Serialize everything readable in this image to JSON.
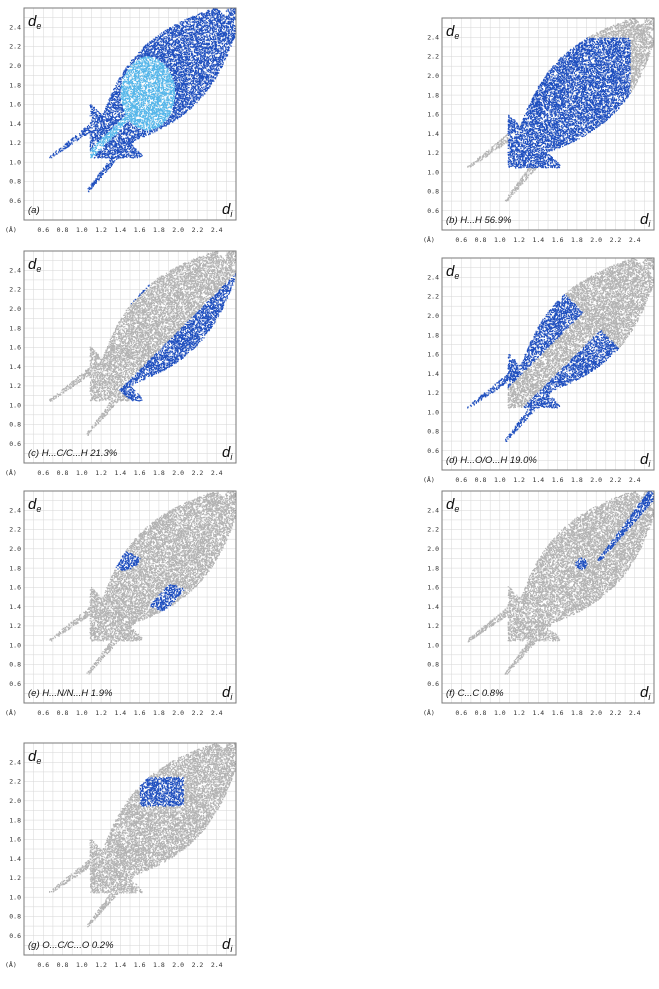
{
  "labels": {
    "de_main": "d",
    "de_sub": "e",
    "di_main": "d",
    "di_sub": "i",
    "unit": "(Å)"
  },
  "colors": {
    "background_points": "#b3b3b3",
    "highlight_points": "#1f4fbf",
    "hot_points": "#55b6ea",
    "grid": "#d6d6d6",
    "frame": "#7a7a7a"
  },
  "chart_data": [
    {
      "id": "a",
      "type": "scatter",
      "caption": "(a)",
      "highlight": "full",
      "x_ticks": [
        "0.6",
        "0.8",
        "1.0",
        "1.2",
        "1.4",
        "1.6",
        "1.8",
        "2.0",
        "2.2",
        "2.4"
      ],
      "y_ticks": [
        "0.6",
        "0.8",
        "1.0",
        "1.2",
        "1.4",
        "1.6",
        "1.8",
        "2.0",
        "2.2",
        "2.4"
      ],
      "xlim": [
        0.4,
        2.6
      ],
      "ylim": [
        0.4,
        2.6
      ],
      "grid": true
    },
    {
      "id": "b",
      "type": "scatter",
      "caption": "(b) H...H 56.9%",
      "highlight": "HH",
      "x_ticks": [
        "0.6",
        "0.8",
        "1.0",
        "1.2",
        "1.4",
        "1.6",
        "1.8",
        "2.0",
        "2.2",
        "2.4"
      ],
      "y_ticks": [
        "0.6",
        "0.8",
        "1.0",
        "1.2",
        "1.4",
        "1.6",
        "1.8",
        "2.0",
        "2.2",
        "2.4"
      ],
      "xlim": [
        0.4,
        2.6
      ],
      "ylim": [
        0.4,
        2.6
      ],
      "grid": true
    },
    {
      "id": "c",
      "type": "scatter",
      "caption": "(c) H...C/C...H 21.3%",
      "highlight": "HC",
      "x_ticks": [
        "0.6",
        "0.8",
        "1.0",
        "1.2",
        "1.4",
        "1.6",
        "1.8",
        "2.0",
        "2.2",
        "2.4"
      ],
      "y_ticks": [
        "0.6",
        "0.8",
        "1.0",
        "1.2",
        "1.4",
        "1.6",
        "1.8",
        "2.0",
        "2.2",
        "2.4"
      ],
      "xlim": [
        0.4,
        2.6
      ],
      "ylim": [
        0.4,
        2.6
      ],
      "grid": true
    },
    {
      "id": "d",
      "type": "scatter",
      "caption": "(d) H...O/O...H 19.0%",
      "highlight": "HO",
      "x_ticks": [
        "0.6",
        "0.8",
        "1.0",
        "1.2",
        "1.4",
        "1.6",
        "1.8",
        "2.0",
        "2.2",
        "2.4"
      ],
      "y_ticks": [
        "0.6",
        "0.8",
        "1.0",
        "1.2",
        "1.4",
        "1.6",
        "1.8",
        "2.0",
        "2.2",
        "2.4"
      ],
      "xlim": [
        0.4,
        2.6
      ],
      "ylim": [
        0.4,
        2.6
      ],
      "grid": true
    },
    {
      "id": "e",
      "type": "scatter",
      "caption": "(e) H...N/N...H 1.9%",
      "highlight": "HN",
      "x_ticks": [
        "0.6",
        "0.8",
        "1.0",
        "1.2",
        "1.4",
        "1.6",
        "1.8",
        "2.0",
        "2.2",
        "2.4"
      ],
      "y_ticks": [
        "0.6",
        "0.8",
        "1.0",
        "1.2",
        "1.4",
        "1.6",
        "1.8",
        "2.0",
        "2.2",
        "2.4"
      ],
      "xlim": [
        0.4,
        2.6
      ],
      "ylim": [
        0.4,
        2.6
      ],
      "grid": true
    },
    {
      "id": "f",
      "type": "scatter",
      "caption": "(f) C...C 0.8%",
      "highlight": "CC",
      "x_ticks": [
        "0.6",
        "0.8",
        "1.0",
        "1.2",
        "1.4",
        "1.6",
        "1.8",
        "2.0",
        "2.2",
        "2.4"
      ],
      "y_ticks": [
        "0.6",
        "0.8",
        "1.0",
        "1.2",
        "1.4",
        "1.6",
        "1.8",
        "2.0",
        "2.2",
        "2.4"
      ],
      "xlim": [
        0.4,
        2.6
      ],
      "ylim": [
        0.4,
        2.6
      ],
      "grid": true
    },
    {
      "id": "g",
      "type": "scatter",
      "caption": "(g) O...C/C...O 0.2%",
      "highlight": "OC",
      "x_ticks": [
        "0.6",
        "0.8",
        "1.0",
        "1.2",
        "1.4",
        "1.6",
        "1.8",
        "2.0",
        "2.2",
        "2.4"
      ],
      "y_ticks": [
        "0.6",
        "0.8",
        "1.0",
        "1.2",
        "1.4",
        "1.6",
        "1.8",
        "2.0",
        "2.2",
        "2.4"
      ],
      "xlim": [
        0.4,
        2.6
      ],
      "ylim": [
        0.4,
        2.6
      ],
      "grid": true
    }
  ]
}
